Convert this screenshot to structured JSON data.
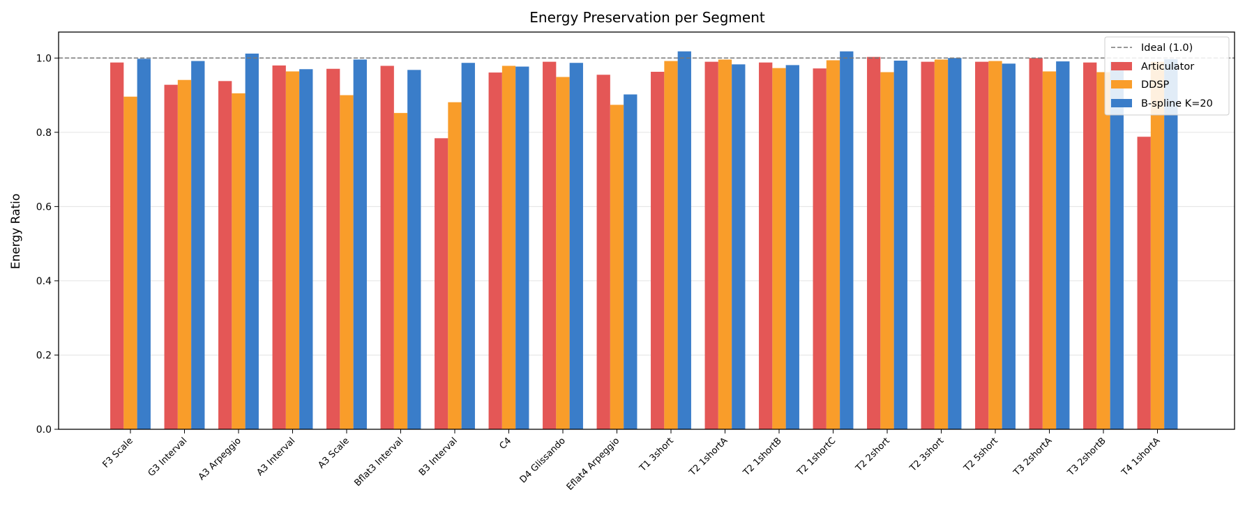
{
  "chart_data": {
    "type": "bar",
    "title": "Energy Preservation per Segment",
    "xlabel": "",
    "ylabel": "Energy Ratio",
    "ylim": [
      0,
      1.07
    ],
    "yticks": [
      0.0,
      0.2,
      0.4,
      0.6,
      0.8,
      1.0
    ],
    "ytick_labels": [
      "0.0",
      "0.2",
      "0.4",
      "0.6",
      "0.8",
      "1.0"
    ],
    "grid": "horizontal",
    "legend_position": "top-right",
    "categories": [
      "F3 Scale",
      "G3 Interval",
      "A3 Arpeggio",
      "A3 Interval",
      "A3 Scale",
      "Bflat3 Interval",
      "B3 Interval",
      "C4",
      "D4 Glissando",
      "Eflat4 Arpeggio",
      "T1 3short",
      "T2 1shortA",
      "T2 1shortB",
      "T2 1shortC",
      "T2 2short",
      "T2 3short",
      "T2 5short",
      "T3 2shortA",
      "T3 2shortB",
      "T4 1shortA"
    ],
    "reference_line": {
      "name": "Ideal (1.0)",
      "value": 1.0,
      "color": "#777777"
    },
    "series": [
      {
        "name": "Articulator",
        "color": "#e45756",
        "values": [
          0.988,
          0.928,
          0.938,
          0.98,
          0.971,
          0.979,
          0.784,
          0.961,
          0.99,
          0.955,
          0.963,
          0.99,
          0.988,
          0.972,
          1.003,
          0.99,
          0.99,
          1.0,
          0.988,
          0.788
        ]
      },
      {
        "name": "DDSP",
        "color": "#f99d2a",
        "values": [
          0.896,
          0.941,
          0.905,
          0.964,
          0.9,
          0.852,
          0.881,
          0.979,
          0.949,
          0.874,
          0.992,
          0.996,
          0.973,
          0.994,
          0.962,
          0.996,
          0.992,
          0.964,
          0.962,
          0.99
        ]
      },
      {
        "name": "B-spline K=20",
        "color": "#3a7dc9",
        "values": [
          0.998,
          0.992,
          1.012,
          0.97,
          0.996,
          0.968,
          0.987,
          0.977,
          0.987,
          0.902,
          1.018,
          0.983,
          0.981,
          1.018,
          0.993,
          1.0,
          0.985,
          0.991,
          0.99,
          0.997
        ]
      }
    ]
  }
}
